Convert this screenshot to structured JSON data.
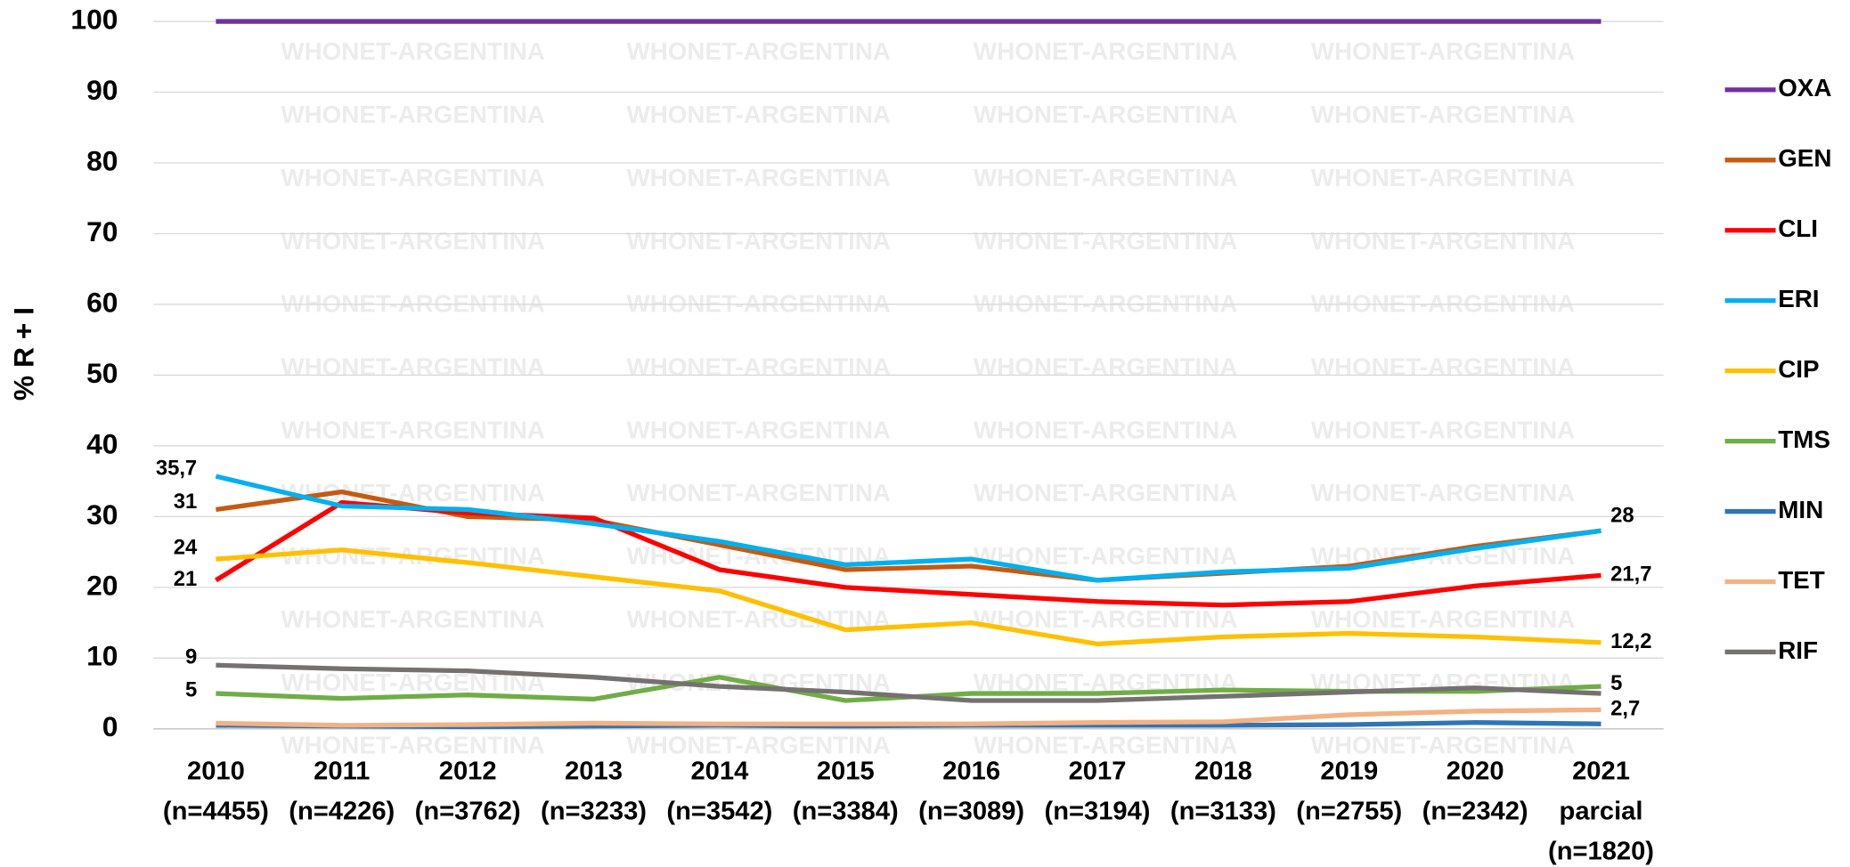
{
  "chart_data": {
    "type": "line",
    "ylabel": "% R + I",
    "watermark": "WHONET-ARGENTINA",
    "categories": [
      [
        "2010",
        "(n=4455)"
      ],
      [
        "2011",
        "(n=4226)"
      ],
      [
        "2012",
        "(n=3762)"
      ],
      [
        "2013",
        "(n=3233)"
      ],
      [
        "2014",
        "(n=3542)"
      ],
      [
        "2015",
        "(n=3384)"
      ],
      [
        "2016",
        "(n=3089)"
      ],
      [
        "2017",
        "(n=3194)"
      ],
      [
        "2018",
        "(n=3133)"
      ],
      [
        "2019",
        "(n=2755)"
      ],
      [
        "2020",
        "(n=2342)"
      ],
      [
        "2021",
        "parcial",
        "(n=1820)"
      ]
    ],
    "ylim": [
      0,
      100
    ],
    "yticks": [
      0,
      10,
      20,
      30,
      40,
      50,
      60,
      70,
      80,
      90,
      100
    ],
    "grid": true,
    "legend": "right",
    "series": [
      {
        "name": "OXA",
        "color": "#7030a0",
        "values": [
          100,
          100,
          100,
          100,
          100,
          100,
          100,
          100,
          100,
          100,
          100,
          100
        ]
      },
      {
        "name": "GEN",
        "color": "#c55a11",
        "values": [
          31,
          33.5,
          30,
          29.5,
          26,
          22.5,
          23,
          21,
          22,
          23,
          25.8,
          28
        ],
        "value_labels": [
          "31",
          null,
          null,
          null,
          null,
          null,
          null,
          null,
          null,
          null,
          null,
          null
        ]
      },
      {
        "name": "CLI",
        "color": "#ff0000",
        "values": [
          21,
          32,
          30.5,
          29.8,
          22.5,
          20,
          19,
          18,
          17.5,
          18,
          20.2,
          21.7
        ],
        "value_labels": [
          "21",
          null,
          null,
          null,
          null,
          null,
          null,
          null,
          null,
          null,
          null,
          "21,7"
        ]
      },
      {
        "name": "ERI",
        "color": "#00b0f0",
        "values": [
          35.7,
          31.5,
          31,
          29,
          26.5,
          23.2,
          24,
          21,
          22.2,
          22.7,
          25.5,
          28
        ],
        "value_labels": [
          "35,7",
          null,
          null,
          null,
          null,
          null,
          null,
          null,
          null,
          null,
          null,
          "28"
        ]
      },
      {
        "name": "CIP",
        "color": "#ffc000",
        "values": [
          24,
          25.3,
          23.5,
          21.5,
          19.5,
          14,
          15,
          12,
          13,
          13.5,
          13,
          12.2
        ],
        "value_labels": [
          "24",
          null,
          null,
          null,
          null,
          null,
          null,
          null,
          null,
          null,
          null,
          "12,2"
        ]
      },
      {
        "name": "TMS",
        "color": "#70ad47",
        "values": [
          5,
          4.3,
          4.8,
          4.2,
          7.3,
          4,
          5,
          5,
          5.5,
          5.3,
          5.3,
          6
        ],
        "value_labels": [
          "5",
          null,
          null,
          null,
          null,
          null,
          null,
          null,
          null,
          null,
          null,
          null
        ]
      },
      {
        "name": "MIN",
        "color": "#2e75b6",
        "values": [
          0.5,
          0.4,
          0.3,
          0.4,
          0.5,
          0.4,
          0.5,
          0.5,
          0.5,
          0.6,
          0.9,
          0.7
        ]
      },
      {
        "name": "TET",
        "color": "#f4b183",
        "values": [
          0.8,
          0.5,
          0.6,
          0.8,
          0.7,
          0.7,
          0.7,
          0.9,
          1,
          2,
          2.5,
          2.7
        ],
        "value_labels": [
          null,
          null,
          null,
          null,
          null,
          null,
          null,
          null,
          null,
          null,
          null,
          "2,7"
        ]
      },
      {
        "name": "RIF",
        "color": "#767171",
        "values": [
          9,
          8.5,
          8.2,
          7.3,
          6,
          5.2,
          4,
          4,
          4.6,
          5.2,
          5.8,
          5
        ],
        "value_labels": [
          "9",
          null,
          null,
          null,
          null,
          null,
          null,
          null,
          null,
          null,
          null,
          "5"
        ]
      }
    ]
  }
}
